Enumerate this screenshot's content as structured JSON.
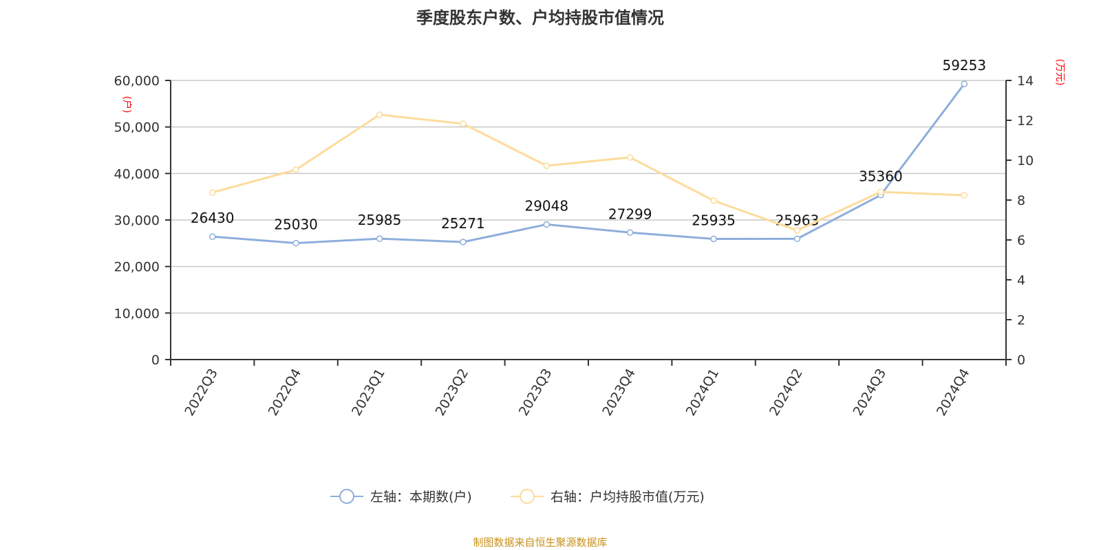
{
  "chart_data": {
    "type": "line",
    "title": "季度股东户数、户均持股市值情况",
    "categories": [
      "2022Q3",
      "2022Q4",
      "2023Q1",
      "2023Q2",
      "2023Q3",
      "2023Q4",
      "2024Q1",
      "2024Q2",
      "2024Q3",
      "2024Q4"
    ],
    "y_left": {
      "label": "(户)",
      "ylim": [
        0,
        60000
      ],
      "ticks": [
        "0",
        "10,000",
        "20,000",
        "30,000",
        "40,000",
        "50,000",
        "60,000"
      ]
    },
    "y_right": {
      "label": "(万元)",
      "ylim": [
        0,
        14
      ],
      "ticks": [
        "0",
        "2",
        "4",
        "6",
        "8",
        "10",
        "12",
        "14"
      ]
    },
    "series": [
      {
        "name": "左轴：本期数(户)",
        "axis": "left",
        "color": "#8eaedb",
        "values": [
          26430,
          25030,
          25985,
          25271,
          29048,
          27299,
          25935,
          25963,
          35360,
          59253
        ],
        "labels": [
          "26430",
          "25030",
          "25985",
          "25271",
          "29048",
          "27299",
          "25935",
          "25963",
          "35360",
          "59253"
        ]
      },
      {
        "name": "右轴：户均持股市值(万元)",
        "axis": "right",
        "color": "#fddb9a",
        "values": [
          8.38,
          9.52,
          12.28,
          11.83,
          9.72,
          10.14,
          7.97,
          6.48,
          8.41,
          8.24
        ]
      }
    ],
    "grid": true,
    "legend": "bottom"
  },
  "source": "制图数据来自恒生聚源数据库"
}
